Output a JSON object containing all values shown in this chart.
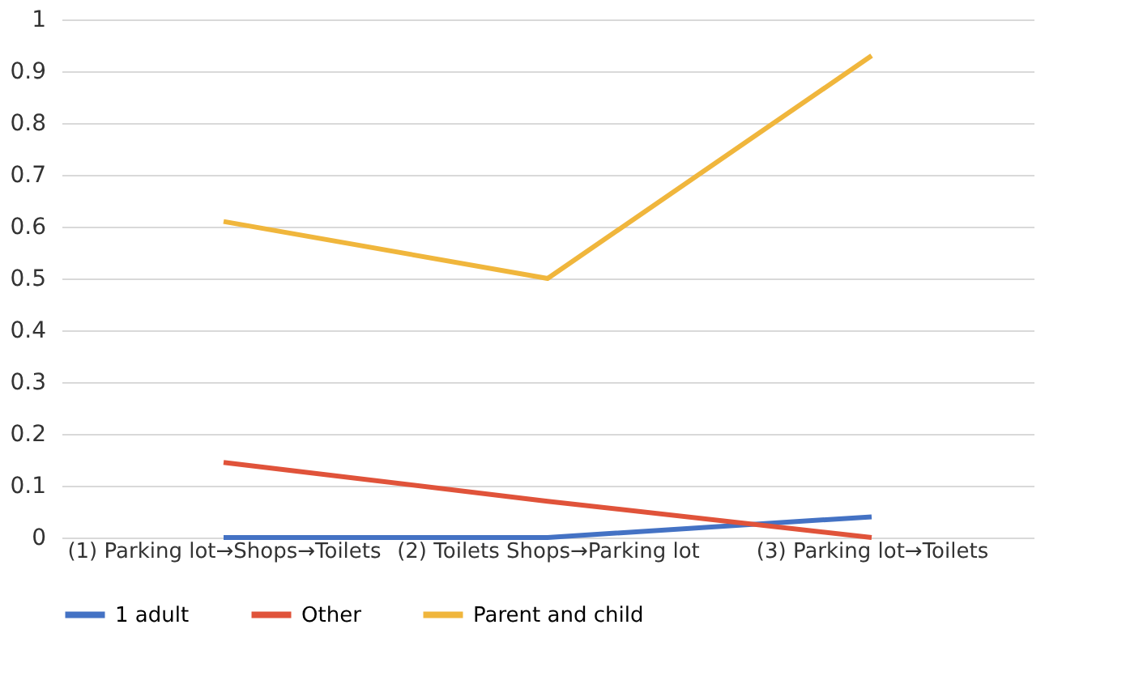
{
  "chart_data": {
    "type": "line",
    "categories": [
      "(1) Parking lot→Shops→Toilets",
      "(2) Toilets Shops→Parking lot",
      "(3) Parking lot→Toilets"
    ],
    "series": [
      {
        "name": "1 adult",
        "color": "#4472c4",
        "values": [
          0,
          0,
          0.04
        ]
      },
      {
        "name": "Other",
        "color": "#e0533a",
        "values": [
          0.145,
          0.07,
          0
        ]
      },
      {
        "name": "Parent and child",
        "color": "#f0b63c",
        "values": [
          0.61,
          0.5,
          0.93
        ]
      }
    ],
    "ylim": [
      0,
      1
    ],
    "yticks": [
      0,
      0.1,
      0.2,
      0.3,
      0.4,
      0.5,
      0.6,
      0.7,
      0.8,
      0.9,
      1
    ],
    "grid": "y",
    "legend": "bottom",
    "marker": "none",
    "line_style": "solid"
  }
}
